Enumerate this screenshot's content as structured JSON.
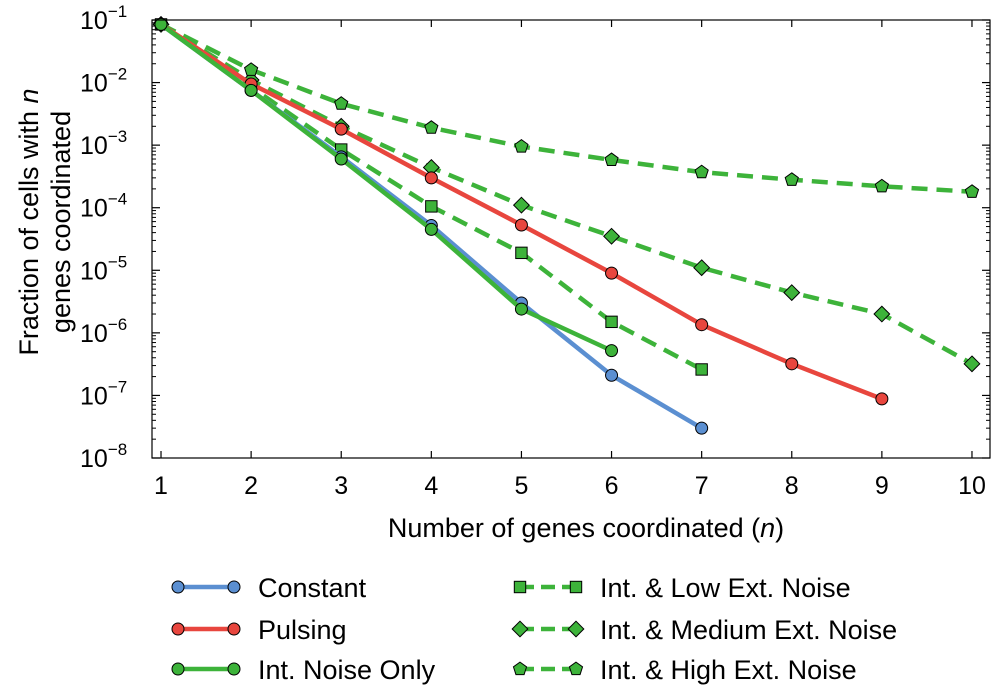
{
  "chart_data": {
    "type": "line",
    "title": "",
    "xlabel": "Number of genes coordinated (",
    "xlabel_var": "n",
    "xlabel_close": ")",
    "ylabel_line1": "Fraction of cells with ",
    "ylabel_var": "n",
    "ylabel_line2": "genes coordinated",
    "x_scale": "linear",
    "y_scale": "log",
    "xlim": [
      0.9,
      10.2
    ],
    "ylim": [
      1e-08,
      0.1
    ],
    "x_ticks": [
      1,
      2,
      3,
      4,
      5,
      6,
      7,
      8,
      9,
      10
    ],
    "x_tick_labels": [
      "1",
      "2",
      "3",
      "4",
      "5",
      "6",
      "7",
      "8",
      "9",
      "10"
    ],
    "y_ticks": [
      {
        "value": 1e-08,
        "base": "10",
        "exp": "−8"
      },
      {
        "value": 1e-07,
        "base": "10",
        "exp": "−7"
      },
      {
        "value": 1e-06,
        "base": "10",
        "exp": "−6"
      },
      {
        "value": 1e-05,
        "base": "10",
        "exp": "−5"
      },
      {
        "value": 0.0001,
        "base": "10",
        "exp": "−4"
      },
      {
        "value": 0.001,
        "base": "10",
        "exp": "−3"
      },
      {
        "value": 0.01,
        "base": "10",
        "exp": "−2"
      },
      {
        "value": 0.1,
        "base": "10",
        "exp": "−1"
      }
    ],
    "grid": false,
    "legend_position": "bottom",
    "series": [
      {
        "name": "Constant",
        "color": "#5b8fd1",
        "dash": "solid",
        "marker": "circle",
        "x": [
          1,
          2,
          3,
          4,
          5,
          6,
          7
        ],
        "y": [
          0.085,
          0.0075,
          0.00065,
          5.2e-05,
          3e-06,
          2.1e-07,
          3e-08
        ]
      },
      {
        "name": "Pulsing",
        "color": "#e8463e",
        "dash": "solid",
        "marker": "circle",
        "x": [
          1,
          2,
          3,
          4,
          5,
          6,
          7,
          8,
          9
        ],
        "y": [
          0.085,
          0.0095,
          0.0018,
          0.0003,
          5.3e-05,
          9e-06,
          1.35e-06,
          3.2e-07,
          8.8e-08
        ]
      },
      {
        "name": "Int. Noise Only",
        "color": "#3db33a",
        "dash": "solid",
        "marker": "circle",
        "x": [
          1,
          2,
          3,
          4,
          5,
          6
        ],
        "y": [
          0.085,
          0.0075,
          0.0006,
          4.5e-05,
          2.4e-06,
          5.2e-07
        ]
      },
      {
        "name": "Int. & Low Ext. Noise",
        "color": "#3db33a",
        "dash": "dashed",
        "marker": "square",
        "x": [
          1,
          2,
          3,
          4,
          5,
          6,
          7
        ],
        "y": [
          0.085,
          0.0085,
          0.00085,
          0.000105,
          1.9e-05,
          1.5e-06,
          2.6e-07
        ]
      },
      {
        "name": "Int. & Medium Ext. Noise",
        "color": "#3db33a",
        "dash": "dashed",
        "marker": "diamond",
        "x": [
          1,
          2,
          3,
          4,
          5,
          6,
          7,
          8,
          9,
          10
        ],
        "y": [
          0.085,
          0.011,
          0.002,
          0.00044,
          0.00011,
          3.5e-05,
          1.1e-05,
          4.4e-06,
          2e-06,
          3.2e-07
        ]
      },
      {
        "name": "Int. & High Ext. Noise",
        "color": "#3db33a",
        "dash": "dashed",
        "marker": "pentagon",
        "x": [
          1,
          2,
          3,
          4,
          5,
          6,
          7,
          8,
          9,
          10
        ],
        "y": [
          0.085,
          0.016,
          0.0046,
          0.0019,
          0.00095,
          0.00058,
          0.00037,
          0.00028,
          0.00022,
          0.00018
        ]
      }
    ]
  }
}
